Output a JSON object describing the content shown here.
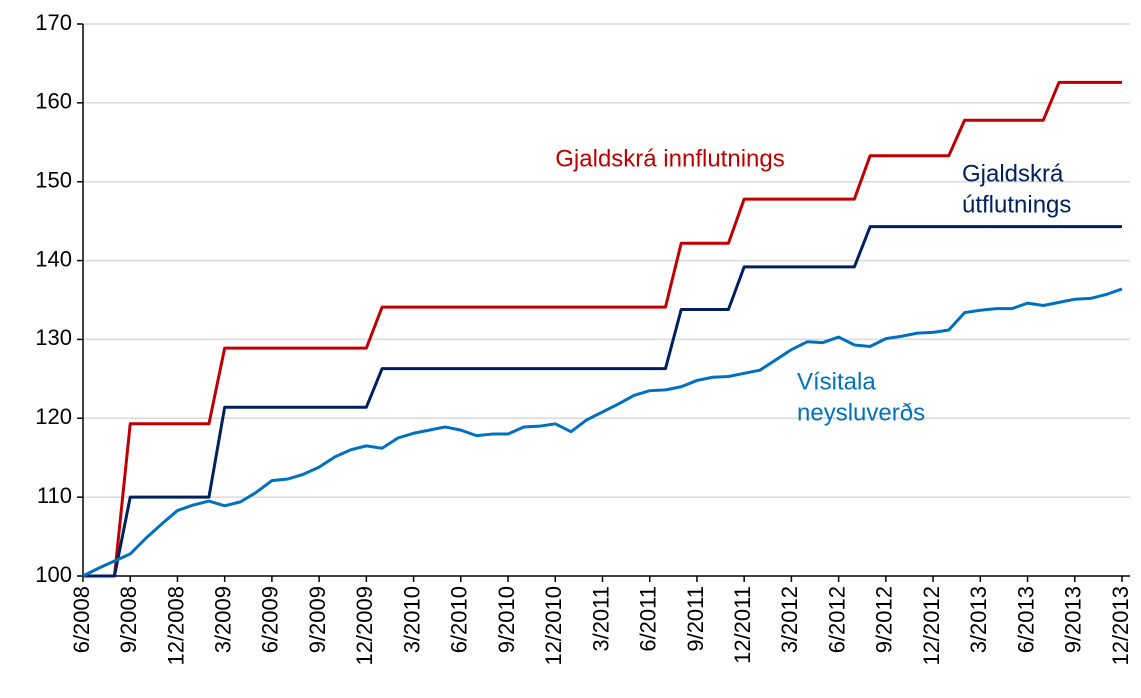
{
  "chart_data": {
    "type": "line",
    "categories": [
      "6/2008",
      null,
      null,
      "9/2008",
      null,
      null,
      "12/2008",
      null,
      null,
      "3/2009",
      null,
      null,
      "6/2009",
      null,
      null,
      "9/2009",
      null,
      null,
      "12/2009",
      null,
      null,
      "3/2010",
      null,
      null,
      "6/2010",
      null,
      null,
      "9/2010",
      null,
      null,
      "12/2010",
      null,
      null,
      "3/2011",
      null,
      null,
      "6/2011",
      null,
      null,
      "9/2011",
      null,
      null,
      "12/2011",
      null,
      null,
      "3/2012",
      null,
      null,
      "6/2012",
      null,
      null,
      "9/2012",
      null,
      null,
      "12/2012",
      null,
      null,
      "3/2013",
      null,
      null,
      "6/2013",
      null,
      null,
      "9/2013",
      null,
      null,
      "12/2013"
    ],
    "series": [
      {
        "name": "Gjaldskrá innflutnings",
        "label": [
          "Gjaldskrá innflutnings"
        ],
        "color": "#c00000",
        "values": [
          100,
          100,
          100,
          119.3,
          119.3,
          119.3,
          119.3,
          119.3,
          119.3,
          128.9,
          128.9,
          128.9,
          128.9,
          128.9,
          128.9,
          128.9,
          128.9,
          128.9,
          128.9,
          134.1,
          134.1,
          134.1,
          134.1,
          134.1,
          134.1,
          134.1,
          134.1,
          134.1,
          134.1,
          134.1,
          134.1,
          134.1,
          134.1,
          134.1,
          134.1,
          134.1,
          134.1,
          134.1,
          142.2,
          142.2,
          142.2,
          142.2,
          147.8,
          147.8,
          147.8,
          147.8,
          147.8,
          147.8,
          147.8,
          147.8,
          153.3,
          153.3,
          153.3,
          153.3,
          153.3,
          153.3,
          157.8,
          157.8,
          157.8,
          157.8,
          157.8,
          157.8,
          162.6,
          162.6,
          162.6,
          162.6,
          162.6
        ]
      },
      {
        "name": "Gjaldskrá útflutnings",
        "label": [
          "Gjaldskrá",
          "útflutnings"
        ],
        "color": "#002060",
        "values": [
          100,
          100,
          100,
          110,
          110,
          110,
          110,
          110,
          110,
          121.4,
          121.4,
          121.4,
          121.4,
          121.4,
          121.4,
          121.4,
          121.4,
          121.4,
          121.4,
          126.3,
          126.3,
          126.3,
          126.3,
          126.3,
          126.3,
          126.3,
          126.3,
          126.3,
          126.3,
          126.3,
          126.3,
          126.3,
          126.3,
          126.3,
          126.3,
          126.3,
          126.3,
          126.3,
          133.8,
          133.8,
          133.8,
          133.8,
          139.2,
          139.2,
          139.2,
          139.2,
          139.2,
          139.2,
          139.2,
          139.2,
          144.3,
          144.3,
          144.3,
          144.3,
          144.3,
          144.3,
          144.3,
          144.3,
          144.3,
          144.3,
          144.3,
          144.3,
          144.3,
          144.3,
          144.3,
          144.3,
          144.3
        ]
      },
      {
        "name": "Vísitala neysluverðs",
        "label": [
          "Vísitala",
          "neysluverðs"
        ],
        "color": "#0070c0",
        "values": [
          100,
          101,
          101.9,
          102.8,
          104.8,
          106.6,
          108.3,
          109,
          109.5,
          108.9,
          109.4,
          110.6,
          112.1,
          112.3,
          112.9,
          113.8,
          115.1,
          116,
          116.5,
          116.2,
          117.5,
          118.1,
          118.5,
          118.9,
          118.5,
          117.8,
          118,
          118,
          118.9,
          119,
          119.3,
          118.3,
          119.8,
          120.8,
          121.8,
          122.9,
          123.5,
          123.6,
          124,
          124.8,
          125.2,
          125.3,
          125.7,
          126.1,
          127.4,
          128.7,
          129.7,
          129.6,
          130.3,
          129.3,
          129.1,
          130.1,
          130.4,
          130.8,
          130.9,
          131.2,
          133.4,
          133.7,
          133.9,
          133.9,
          134.6,
          134.3,
          134.7,
          135.1,
          135.2,
          135.7,
          136.4
        ]
      }
    ],
    "ylim": [
      100,
      170
    ],
    "yticks": [
      100,
      110,
      120,
      130,
      140,
      150,
      160,
      170
    ],
    "grid": true
  }
}
